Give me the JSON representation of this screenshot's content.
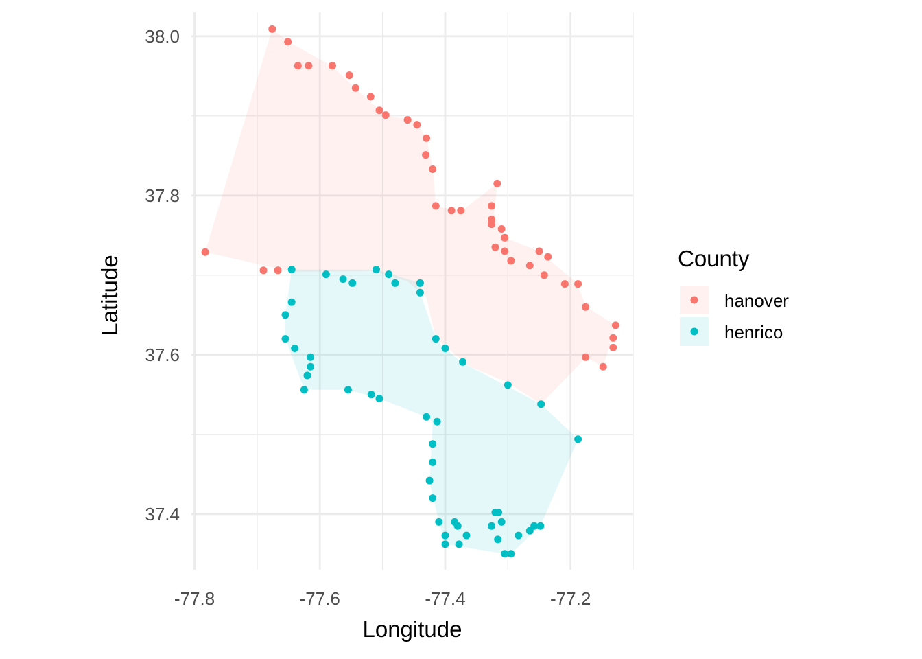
{
  "chart_data": {
    "type": "scatter",
    "xlabel": "Longitude",
    "ylabel": "Latitude",
    "xlim": [
      -77.805,
      -77.1
    ],
    "ylim": [
      37.33,
      38.03
    ],
    "x_ticks": [
      -77.8,
      -77.6,
      -77.4,
      -77.2
    ],
    "x_tick_labels": [
      "-77.8",
      "-77.6",
      "-77.4",
      "-77.2"
    ],
    "x_minor_ticks": [
      -77.7,
      -77.5,
      -77.3,
      -77.1
    ],
    "y_ticks": [
      37.4,
      37.6,
      37.8,
      38.0
    ],
    "y_tick_labels": [
      "37.4",
      "37.6",
      "37.8",
      "38.0"
    ],
    "y_minor_ticks": [
      37.5,
      37.7,
      37.9
    ],
    "grid": true,
    "legend": {
      "title": "County",
      "position": "right"
    },
    "series": [
      {
        "name": "hanover",
        "color": "#F8766D",
        "hull": [
          [
            -77.676,
            38.009
          ],
          [
            -77.783,
            37.729
          ],
          [
            -77.643,
            37.704
          ],
          [
            -77.515,
            37.705
          ],
          [
            -77.46,
            37.692
          ],
          [
            -77.43,
            37.672
          ],
          [
            -77.415,
            37.62
          ],
          [
            -77.36,
            37.585
          ],
          [
            -77.3,
            37.565
          ],
          [
            -77.247,
            37.538
          ],
          [
            -77.175,
            37.597
          ],
          [
            -77.148,
            37.585
          ],
          [
            -77.128,
            37.637
          ],
          [
            -77.175,
            37.66
          ],
          [
            -77.19,
            37.69
          ],
          [
            -77.25,
            37.73
          ],
          [
            -77.305,
            37.747
          ],
          [
            -77.322,
            37.777
          ],
          [
            -77.317,
            37.815
          ],
          [
            -77.375,
            37.78
          ],
          [
            -77.415,
            37.787
          ],
          [
            -77.42,
            37.835
          ],
          [
            -77.43,
            37.873
          ],
          [
            -77.45,
            37.895
          ],
          [
            -77.495,
            37.9
          ],
          [
            -77.53,
            37.925
          ],
          [
            -77.58,
            37.962
          ],
          [
            -77.65,
            37.993
          ]
        ],
        "x": [
          -77.676,
          -77.651,
          -77.635,
          -77.618,
          -77.58,
          -77.553,
          -77.543,
          -77.519,
          -77.505,
          -77.495,
          -77.46,
          -77.445,
          -77.43,
          -77.431,
          -77.42,
          -77.415,
          -77.39,
          -77.375,
          -77.317,
          -77.326,
          -77.326,
          -77.31,
          -77.305,
          -77.305,
          -77.295,
          -77.326,
          -77.32,
          -77.25,
          -77.236,
          -77.265,
          -77.242,
          -77.209,
          -77.188,
          -77.176,
          -77.783,
          -77.69,
          -77.667,
          -77.128,
          -77.132,
          -77.132,
          -77.176,
          -77.148
        ],
        "y": [
          38.009,
          37.993,
          37.963,
          37.963,
          37.963,
          37.951,
          37.935,
          37.924,
          37.907,
          37.901,
          37.895,
          37.889,
          37.872,
          37.851,
          37.833,
          37.787,
          37.781,
          37.781,
          37.815,
          37.787,
          37.77,
          37.758,
          37.747,
          37.73,
          37.718,
          37.764,
          37.735,
          37.73,
          37.723,
          37.712,
          37.7,
          37.689,
          37.689,
          37.66,
          37.729,
          37.706,
          37.706,
          37.637,
          37.621,
          37.609,
          37.597,
          37.585
        ]
      },
      {
        "name": "henrico",
        "color": "#00BFC4",
        "hull": [
          [
            -77.645,
            37.707
          ],
          [
            -77.655,
            37.65
          ],
          [
            -77.655,
            37.62
          ],
          [
            -77.625,
            37.556
          ],
          [
            -77.555,
            37.556
          ],
          [
            -77.505,
            37.545
          ],
          [
            -77.43,
            37.522
          ],
          [
            -77.42,
            37.515
          ],
          [
            -77.425,
            37.44
          ],
          [
            -77.41,
            37.39
          ],
          [
            -77.4,
            37.362
          ],
          [
            -77.305,
            37.35
          ],
          [
            -77.295,
            37.35
          ],
          [
            -77.248,
            37.385
          ],
          [
            -77.188,
            37.494
          ],
          [
            -77.247,
            37.538
          ],
          [
            -77.375,
            37.591
          ],
          [
            -77.4,
            37.608
          ],
          [
            -77.415,
            37.62
          ],
          [
            -77.44,
            37.678
          ],
          [
            -77.44,
            37.69
          ],
          [
            -77.51,
            37.707
          ]
        ],
        "x": [
          -77.645,
          -77.59,
          -77.563,
          -77.548,
          -77.51,
          -77.49,
          -77.48,
          -77.44,
          -77.44,
          -77.645,
          -77.655,
          -77.655,
          -77.64,
          -77.615,
          -77.615,
          -77.62,
          -77.625,
          -77.555,
          -77.518,
          -77.505,
          -77.415,
          -77.4,
          -77.372,
          -77.3,
          -77.247,
          -77.188,
          -77.43,
          -77.413,
          -77.42,
          -77.42,
          -77.425,
          -77.42,
          -77.41,
          -77.385,
          -77.38,
          -77.4,
          -77.4,
          -77.378,
          -77.366,
          -77.326,
          -77.32,
          -77.315,
          -77.31,
          -77.316,
          -77.305,
          -77.295,
          -77.283,
          -77.265,
          -77.258,
          -77.248
        ],
        "y": [
          37.707,
          37.701,
          37.695,
          37.69,
          37.707,
          37.701,
          37.69,
          37.69,
          37.678,
          37.666,
          37.65,
          37.62,
          37.608,
          37.597,
          37.585,
          37.574,
          37.556,
          37.556,
          37.55,
          37.545,
          37.62,
          37.608,
          37.591,
          37.562,
          37.538,
          37.494,
          37.522,
          37.516,
          37.488,
          37.465,
          37.442,
          37.42,
          37.39,
          37.39,
          37.385,
          37.373,
          37.362,
          37.362,
          37.373,
          37.385,
          37.402,
          37.402,
          37.39,
          37.368,
          37.35,
          37.35,
          37.373,
          37.379,
          37.385,
          37.385
        ]
      }
    ]
  }
}
